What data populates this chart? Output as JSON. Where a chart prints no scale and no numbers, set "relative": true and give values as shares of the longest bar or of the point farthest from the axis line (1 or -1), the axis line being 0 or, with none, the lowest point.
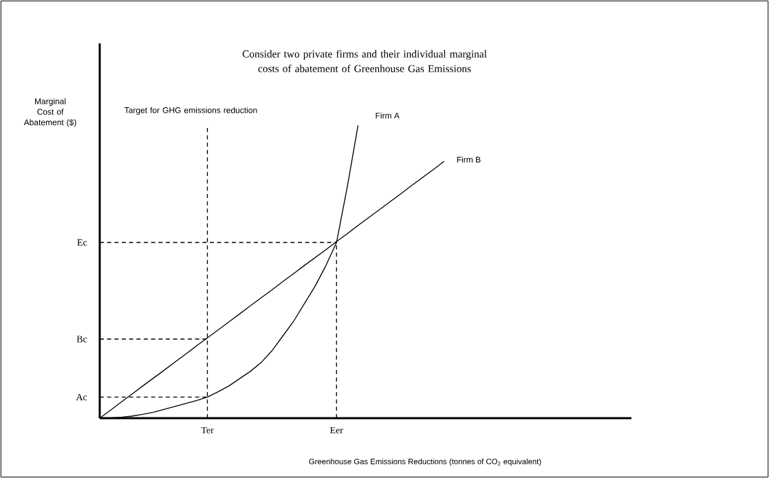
{
  "chart_data": {
    "type": "line",
    "relative": true,
    "title": "Consider two private firms and their individual marginal costs of abatement of Greenhouse Gas Emissions",
    "xlabel": "Greenhouse Gas Emissions Reductions (tonnes of CO$_{2}$ equivalent)",
    "ylabel": "Marginal Cost of Abatement ($)",
    "categories": [
      null,
      null,
      null,
      null,
      null,
      null,
      null,
      null,
      null,
      null,
      "Ter",
      null,
      null,
      null,
      null,
      null,
      null,
      null,
      null,
      null,
      null,
      null,
      "Eer",
      null,
      null,
      null,
      null,
      null,
      null,
      null,
      null,
      null,
      null,
      null,
      null,
      null,
      null,
      null,
      null,
      null,
      null,
      null,
      null,
      null,
      null,
      null,
      null,
      null,
      null,
      null
    ],
    "series": [
      {
        "name": "Firm A",
        "color": "#000000",
        "values": [
          0,
          0.001,
          0.003,
          0.007,
          0.013,
          0.02,
          0.03,
          0.04,
          0.05,
          0.06,
          0.072,
          0.09,
          0.11,
          0.135,
          0.16,
          0.19,
          0.23,
          0.28,
          0.33,
          0.39,
          0.45,
          0.52,
          0.6,
          0.79,
          1.0,
          null,
          null,
          null,
          null,
          null,
          null,
          null,
          null,
          null,
          null,
          null,
          null,
          null,
          null,
          null,
          null,
          null,
          null,
          null,
          null,
          null,
          null,
          null,
          null,
          null
        ]
      },
      {
        "name": "Firm B",
        "color": "#000000",
        "values": [
          0,
          0.027,
          0.055,
          0.082,
          0.11,
          0.137,
          0.164,
          0.192,
          0.219,
          0.247,
          0.274,
          0.301,
          0.329,
          0.356,
          0.384,
          0.411,
          0.438,
          0.466,
          0.493,
          0.521,
          0.548,
          0.575,
          0.603,
          0.63,
          0.658,
          0.685,
          0.712,
          0.74,
          0.767,
          0.795,
          0.822,
          0.849,
          0.877,
          null,
          null,
          null,
          null,
          null,
          null,
          null,
          null,
          null,
          null,
          null,
          null,
          null,
          null,
          null,
          null,
          null
        ]
      }
    ],
    "ref_lines": [
      {
        "axis": "y",
        "value": 0.072,
        "label": "Ac",
        "line_style": "dashed"
      },
      {
        "axis": "y",
        "value": 0.27,
        "label": "Bc",
        "line_style": "dashed"
      },
      {
        "axis": "y",
        "value": 0.6,
        "label": "Ec",
        "line_style": "dashed"
      },
      {
        "axis": "x",
        "value": "Ter",
        "label": "Target for GHG emissions reduction",
        "line_style": "dashed"
      },
      {
        "axis": "x",
        "value": "Eer",
        "line_style": "dashed"
      }
    ],
    "legend": false,
    "grid": false
  }
}
